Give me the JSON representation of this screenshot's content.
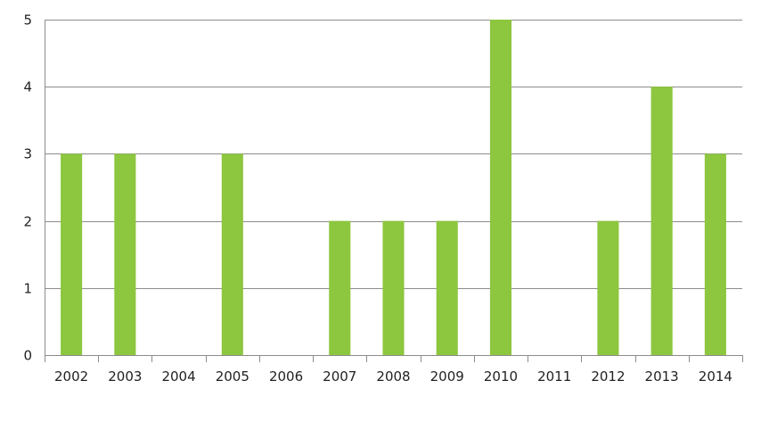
{
  "chart_data": {
    "type": "bar",
    "categories": [
      "2002",
      "2003",
      "2004",
      "2005",
      "2006",
      "2007",
      "2008",
      "2009",
      "2010",
      "2011",
      "2012",
      "2013",
      "2014"
    ],
    "values": [
      3,
      3,
      0,
      3,
      0,
      2,
      2,
      2,
      5,
      0,
      2,
      4,
      3
    ],
    "y_ticks": [
      "0",
      "1",
      "2",
      "3",
      "4",
      "5"
    ],
    "ylim": [
      0,
      5
    ],
    "grid": true,
    "legend": "none",
    "bar_color": "#8dc63f",
    "grid_color": "#8c8c8c",
    "title": "",
    "xlabel": "",
    "ylabel": ""
  }
}
